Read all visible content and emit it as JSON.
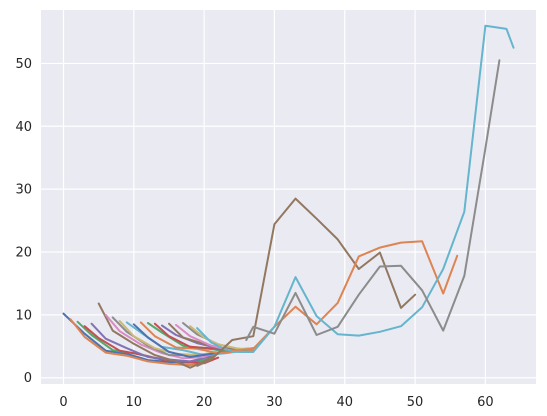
{
  "chart_data": {
    "type": "line",
    "title": "",
    "xlabel": "",
    "ylabel": "",
    "xlim": [
      -3.2,
      67.2
    ],
    "ylim": [
      -1,
      58.5
    ],
    "xticks": [
      0,
      10,
      20,
      30,
      40,
      50,
      60
    ],
    "yticks": [
      0,
      10,
      20,
      30,
      40,
      50
    ],
    "grid": true,
    "background": "#eaeaf2",
    "grid_color": "#ffffff",
    "series": [
      {
        "color": "#4c72b0",
        "x": [
          0,
          3,
          6,
          9,
          12,
          15,
          18,
          21
        ],
        "y": [
          10.2,
          7,
          4.3,
          3.8,
          2.8,
          2.5,
          2.4,
          3
        ]
      },
      {
        "color": "#dd8452",
        "x": [
          1,
          3,
          6,
          9,
          12,
          15,
          18,
          21
        ],
        "y": [
          9.3,
          6.5,
          4,
          3.5,
          2.6,
          2.2,
          2,
          2.8
        ]
      },
      {
        "color": "#55a868",
        "x": [
          2,
          4,
          7,
          10,
          13,
          16,
          19,
          21
        ],
        "y": [
          8.9,
          6.8,
          4.4,
          3.9,
          3.1,
          2.7,
          2.5,
          3.1
        ]
      },
      {
        "color": "#c44e52",
        "x": [
          3,
          5,
          8,
          11,
          14,
          17,
          20,
          22
        ],
        "y": [
          8.2,
          6.3,
          4.3,
          3.7,
          2.9,
          2.6,
          2.3,
          3.2
        ]
      },
      {
        "color": "#8172b3",
        "x": [
          4,
          6,
          9,
          12,
          15,
          18,
          21
        ],
        "y": [
          8.6,
          6.2,
          4.7,
          3.3,
          2.9,
          2.6,
          3.4
        ]
      },
      {
        "color": "#937860",
        "x": [
          5,
          7,
          10,
          13,
          16,
          18,
          20,
          22
        ],
        "y": [
          11.8,
          7.5,
          5.4,
          3.6,
          2.6,
          1.6,
          2.6,
          3.9
        ]
      },
      {
        "color": "#da8bc3",
        "x": [
          6,
          8,
          11,
          14,
          17,
          20,
          22
        ],
        "y": [
          10,
          7.4,
          5.3,
          3.9,
          3.1,
          3.3,
          4.3
        ]
      },
      {
        "color": "#8c8c8c",
        "x": [
          7,
          9,
          12,
          15,
          18,
          21,
          23
        ],
        "y": [
          9.6,
          7.3,
          5.1,
          3.6,
          3.6,
          3.8,
          4.1
        ]
      },
      {
        "color": "#ccb974",
        "x": [
          8,
          10,
          13,
          16,
          19,
          22,
          24
        ],
        "y": [
          9,
          6.6,
          4.7,
          3.8,
          3.6,
          4.1,
          4.2
        ]
      },
      {
        "color": "#64b5cd",
        "x": [
          9,
          11,
          14,
          17,
          20,
          23,
          25
        ],
        "y": [
          8.8,
          7.2,
          4.9,
          4.4,
          3.6,
          3.9,
          4.2
        ]
      },
      {
        "color": "#4c72b0",
        "x": [
          10,
          12,
          15,
          18,
          21,
          24,
          26
        ],
        "y": [
          8.5,
          6.4,
          4.1,
          3.3,
          3.8,
          4.2,
          4.4
        ]
      },
      {
        "color": "#dd8452",
        "x": [
          11,
          13,
          16,
          19,
          22,
          25,
          27
        ],
        "y": [
          8.8,
          6.6,
          4.8,
          4.6,
          3.9,
          4.2,
          4.4
        ]
      },
      {
        "color": "#55a868",
        "x": [
          12,
          14,
          17,
          20,
          23,
          26
        ],
        "y": [
          8.7,
          7.2,
          5.1,
          4.7,
          4.3,
          4.4
        ]
      },
      {
        "color": "#c44e52",
        "x": [
          13,
          15,
          18,
          21,
          24,
          27
        ],
        "y": [
          8.6,
          6.6,
          4.9,
          4.7,
          4.4,
          4.6
        ]
      },
      {
        "color": "#8172b3",
        "x": [
          14,
          16,
          19,
          22,
          25,
          27
        ],
        "y": [
          8.3,
          6.8,
          5.5,
          4.7,
          4.5,
          4.7
        ]
      },
      {
        "color": "#937860",
        "x": [
          15,
          17,
          20,
          22,
          24,
          25
        ],
        "y": [
          8.6,
          6.4,
          5.4,
          4.8,
          4.5,
          4.6
        ]
      },
      {
        "color": "#da8bc3",
        "x": [
          16,
          18,
          21,
          24,
          27
        ],
        "y": [
          8.4,
          6.6,
          5.1,
          4.3,
          4.6
        ]
      },
      {
        "color": "#8c8c8c",
        "x": [
          17,
          19,
          22,
          25,
          27
        ],
        "y": [
          8.7,
          6.9,
          5.3,
          4.5,
          4.7
        ]
      },
      {
        "color": "#ccb974",
        "x": [
          18,
          20,
          22,
          25,
          27
        ],
        "y": [
          8.2,
          6.4,
          5.3,
          4.6,
          4.6
        ]
      },
      {
        "color": "#64b5cd",
        "x": [
          19,
          21,
          23,
          25,
          27
        ],
        "y": [
          7.9,
          5.6,
          4.5,
          4.1,
          4.1
        ]
      },
      {
        "color": "#937860",
        "x": [
          19,
          21,
          24,
          27,
          30,
          33,
          36,
          39,
          42,
          45,
          48,
          50
        ],
        "y": [
          1.9,
          2.9,
          6,
          6.6,
          24.4,
          28.5,
          25.3,
          22,
          17.3,
          19.9,
          11.1,
          13.2
        ]
      },
      {
        "color": "#dd8452",
        "x": [
          24,
          27,
          30,
          33,
          36,
          39,
          42,
          45,
          48,
          51,
          54,
          56
        ],
        "y": [
          4.3,
          4.6,
          8.1,
          11.3,
          8.5,
          11.9,
          19.3,
          20.7,
          21.5,
          21.7,
          13.4,
          19.4
        ]
      },
      {
        "color": "#64b5cd",
        "x": [
          24,
          27,
          30,
          33,
          36,
          39,
          42,
          45,
          48,
          51,
          54,
          57,
          60,
          63,
          64
        ],
        "y": [
          4.1,
          4.1,
          8.1,
          16,
          9.8,
          6.9,
          6.7,
          7.3,
          8.2,
          11.2,
          17.3,
          26.4,
          56,
          55.5,
          52.5
        ]
      },
      {
        "color": "#8c8c8c",
        "x": [
          26,
          27,
          30,
          33,
          36,
          39,
          42,
          45,
          48,
          51,
          54,
          57,
          60,
          62
        ],
        "y": [
          6,
          8.1,
          7,
          13.5,
          6.8,
          8.1,
          13.2,
          17.7,
          17.8,
          13.9,
          7.5,
          16.2,
          36.5,
          50.5
        ]
      }
    ]
  }
}
